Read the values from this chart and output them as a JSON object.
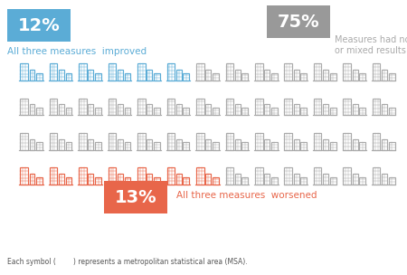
{
  "blue_pct": "12%",
  "gray_pct": "75%",
  "red_pct": "13%",
  "blue_label": "All three measures  improved",
  "gray_label": "Measures had no change\nor mixed results",
  "red_label": "All three measures  worsened",
  "footnote": "Each symbol (        ) represents a metropolitan statistical area (MSA).",
  "blue_color": "#5BACD6",
  "gray_color": "#AAAAAA",
  "red_color": "#E8664A",
  "blue_bg": "#5BACD6",
  "gray_bg": "#999999",
  "red_bg": "#E8664A",
  "n_blue": 6,
  "n_gray": 39,
  "n_red": 7,
  "total": 52,
  "cols": 13,
  "rows": 4,
  "bg_color": "#FFFFFF"
}
